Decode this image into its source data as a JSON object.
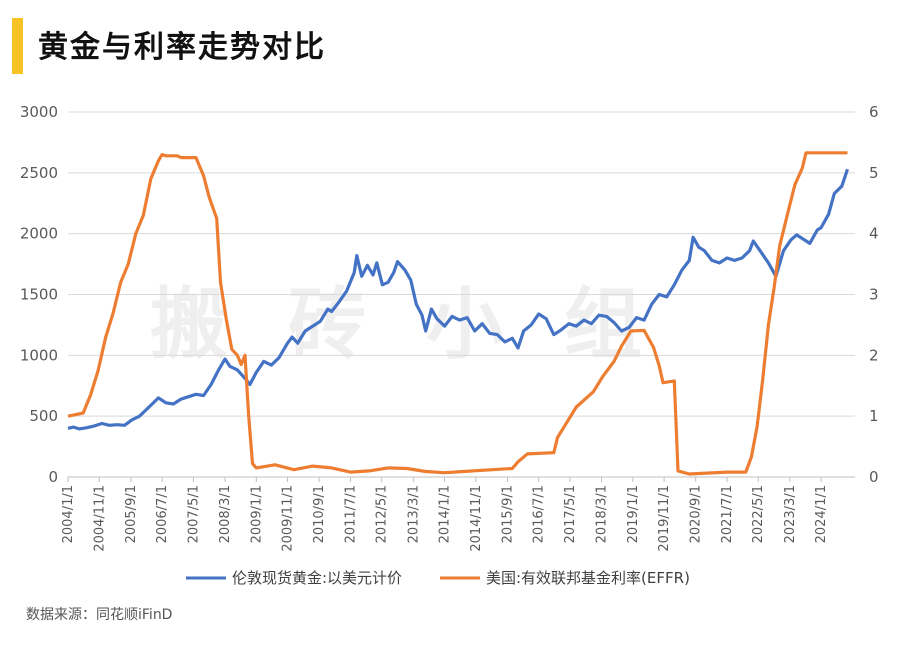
{
  "title": "黄金与利率走势对比",
  "watermark": "搬砖小组",
  "source": "数据来源：同花顺iFinD",
  "colors": {
    "gold": "#4472c4",
    "rate": "#ed7d31",
    "accent": "#f7c325",
    "grid": "#d9d9d9"
  },
  "chart_data": {
    "type": "line",
    "title": "黄金与利率走势对比",
    "y_left": {
      "min": 0,
      "max": 3000,
      "ticks": [
        "0",
        "500",
        "1000",
        "1500",
        "2000",
        "2500",
        "3000"
      ]
    },
    "y_right": {
      "min": 0,
      "max": 6,
      "ticks": [
        "0",
        "1",
        "2",
        "3",
        "4",
        "5",
        "6"
      ]
    },
    "x_range": [
      2004.0,
      2024.9
    ],
    "x_ticks": [
      {
        "t": 2004.0,
        "label": "2004/1/1"
      },
      {
        "t": 2004.83,
        "label": "2004/11/1"
      },
      {
        "t": 2005.67,
        "label": "2005/9/1"
      },
      {
        "t": 2006.5,
        "label": "2006/7/1"
      },
      {
        "t": 2007.33,
        "label": "2007/5/1"
      },
      {
        "t": 2008.17,
        "label": "2008/3/1"
      },
      {
        "t": 2009.0,
        "label": "2009/1/1"
      },
      {
        "t": 2009.83,
        "label": "2009/11/1"
      },
      {
        "t": 2010.67,
        "label": "2010/9/1"
      },
      {
        "t": 2011.5,
        "label": "2011/7/1"
      },
      {
        "t": 2012.33,
        "label": "2012/5/1"
      },
      {
        "t": 2013.17,
        "label": "2013/3/1"
      },
      {
        "t": 2014.0,
        "label": "2014/1/1"
      },
      {
        "t": 2014.83,
        "label": "2014/11/1"
      },
      {
        "t": 2015.67,
        "label": "2015/9/1"
      },
      {
        "t": 2016.5,
        "label": "2016/7/1"
      },
      {
        "t": 2017.33,
        "label": "2017/5/1"
      },
      {
        "t": 2018.17,
        "label": "2018/3/1"
      },
      {
        "t": 2019.0,
        "label": "2019/1/1"
      },
      {
        "t": 2019.83,
        "label": "2019/11/1"
      },
      {
        "t": 2020.67,
        "label": "2020/9/1"
      },
      {
        "t": 2021.5,
        "label": "2021/7/1"
      },
      {
        "t": 2022.33,
        "label": "2022/5/1"
      },
      {
        "t": 2023.17,
        "label": "2023/3/1"
      },
      {
        "t": 2024.0,
        "label": "2024/1/1"
      }
    ],
    "legend_position": "bottom",
    "grid": true,
    "series": [
      {
        "name": "伦敦现货黄金:以美元计价",
        "axis": "left",
        "points": [
          [
            2004.0,
            400
          ],
          [
            2004.15,
            410
          ],
          [
            2004.3,
            395
          ],
          [
            2004.5,
            405
          ],
          [
            2004.7,
            420
          ],
          [
            2004.9,
            440
          ],
          [
            2005.1,
            425
          ],
          [
            2005.3,
            430
          ],
          [
            2005.5,
            425
          ],
          [
            2005.7,
            470
          ],
          [
            2005.9,
            500
          ],
          [
            2006.1,
            560
          ],
          [
            2006.3,
            620
          ],
          [
            2006.4,
            650
          ],
          [
            2006.6,
            610
          ],
          [
            2006.8,
            600
          ],
          [
            2007.0,
            640
          ],
          [
            2007.2,
            660
          ],
          [
            2007.4,
            680
          ],
          [
            2007.6,
            670
          ],
          [
            2007.8,
            760
          ],
          [
            2008.0,
            880
          ],
          [
            2008.17,
            970
          ],
          [
            2008.3,
            910
          ],
          [
            2008.5,
            880
          ],
          [
            2008.7,
            810
          ],
          [
            2008.83,
            760
          ],
          [
            2009.0,
            860
          ],
          [
            2009.2,
            950
          ],
          [
            2009.4,
            920
          ],
          [
            2009.6,
            980
          ],
          [
            2009.83,
            1100
          ],
          [
            2009.95,
            1150
          ],
          [
            2010.1,
            1100
          ],
          [
            2010.3,
            1200
          ],
          [
            2010.5,
            1240
          ],
          [
            2010.7,
            1280
          ],
          [
            2010.9,
            1380
          ],
          [
            2011.0,
            1360
          ],
          [
            2011.2,
            1440
          ],
          [
            2011.4,
            1530
          ],
          [
            2011.6,
            1680
          ],
          [
            2011.67,
            1820
          ],
          [
            2011.8,
            1650
          ],
          [
            2011.95,
            1740
          ],
          [
            2012.1,
            1660
          ],
          [
            2012.2,
            1760
          ],
          [
            2012.35,
            1580
          ],
          [
            2012.5,
            1600
          ],
          [
            2012.65,
            1680
          ],
          [
            2012.75,
            1770
          ],
          [
            2012.95,
            1700
          ],
          [
            2013.1,
            1620
          ],
          [
            2013.25,
            1420
          ],
          [
            2013.4,
            1330
          ],
          [
            2013.5,
            1200
          ],
          [
            2013.65,
            1380
          ],
          [
            2013.8,
            1300
          ],
          [
            2014.0,
            1240
          ],
          [
            2014.2,
            1320
          ],
          [
            2014.4,
            1290
          ],
          [
            2014.6,
            1310
          ],
          [
            2014.8,
            1200
          ],
          [
            2015.0,
            1260
          ],
          [
            2015.2,
            1180
          ],
          [
            2015.4,
            1170
          ],
          [
            2015.6,
            1110
          ],
          [
            2015.8,
            1140
          ],
          [
            2015.95,
            1060
          ],
          [
            2016.1,
            1200
          ],
          [
            2016.3,
            1250
          ],
          [
            2016.5,
            1340
          ],
          [
            2016.7,
            1300
          ],
          [
            2016.9,
            1170
          ],
          [
            2017.1,
            1210
          ],
          [
            2017.3,
            1260
          ],
          [
            2017.5,
            1240
          ],
          [
            2017.7,
            1290
          ],
          [
            2017.9,
            1260
          ],
          [
            2018.1,
            1330
          ],
          [
            2018.3,
            1320
          ],
          [
            2018.5,
            1270
          ],
          [
            2018.7,
            1200
          ],
          [
            2018.9,
            1230
          ],
          [
            2019.1,
            1310
          ],
          [
            2019.3,
            1290
          ],
          [
            2019.5,
            1420
          ],
          [
            2019.7,
            1500
          ],
          [
            2019.9,
            1480
          ],
          [
            2020.1,
            1580
          ],
          [
            2020.3,
            1700
          ],
          [
            2020.5,
            1780
          ],
          [
            2020.6,
            1970
          ],
          [
            2020.75,
            1890
          ],
          [
            2020.9,
            1860
          ],
          [
            2021.1,
            1780
          ],
          [
            2021.3,
            1760
          ],
          [
            2021.5,
            1800
          ],
          [
            2021.7,
            1780
          ],
          [
            2021.9,
            1800
          ],
          [
            2022.1,
            1860
          ],
          [
            2022.2,
            1940
          ],
          [
            2022.4,
            1850
          ],
          [
            2022.6,
            1760
          ],
          [
            2022.8,
            1650
          ],
          [
            2023.0,
            1860
          ],
          [
            2023.2,
            1950
          ],
          [
            2023.35,
            1990
          ],
          [
            2023.5,
            1960
          ],
          [
            2023.7,
            1920
          ],
          [
            2023.9,
            2030
          ],
          [
            2024.0,
            2050
          ],
          [
            2024.2,
            2160
          ],
          [
            2024.35,
            2330
          ],
          [
            2024.55,
            2390
          ],
          [
            2024.7,
            2530
          ]
        ]
      },
      {
        "name": "美国:有效联邦基金利率(EFFR)",
        "axis": "right",
        "points": [
          [
            2004.0,
            1.0
          ],
          [
            2004.4,
            1.05
          ],
          [
            2004.6,
            1.35
          ],
          [
            2004.8,
            1.75
          ],
          [
            2005.0,
            2.3
          ],
          [
            2005.2,
            2.7
          ],
          [
            2005.4,
            3.2
          ],
          [
            2005.6,
            3.5
          ],
          [
            2005.8,
            4.0
          ],
          [
            2006.0,
            4.3
          ],
          [
            2006.2,
            4.9
          ],
          [
            2006.4,
            5.2
          ],
          [
            2006.5,
            5.3
          ],
          [
            2006.6,
            5.28
          ],
          [
            2006.9,
            5.28
          ],
          [
            2007.0,
            5.25
          ],
          [
            2007.4,
            5.25
          ],
          [
            2007.6,
            4.95
          ],
          [
            2007.75,
            4.6
          ],
          [
            2007.95,
            4.25
          ],
          [
            2008.05,
            3.2
          ],
          [
            2008.2,
            2.6
          ],
          [
            2008.35,
            2.1
          ],
          [
            2008.5,
            2.0
          ],
          [
            2008.6,
            1.85
          ],
          [
            2008.7,
            2.0
          ],
          [
            2008.8,
            1.0
          ],
          [
            2008.9,
            0.22
          ],
          [
            2009.0,
            0.15
          ],
          [
            2009.5,
            0.2
          ],
          [
            2010.0,
            0.12
          ],
          [
            2010.5,
            0.18
          ],
          [
            2011.0,
            0.15
          ],
          [
            2011.5,
            0.08
          ],
          [
            2012.0,
            0.1
          ],
          [
            2012.5,
            0.15
          ],
          [
            2013.0,
            0.14
          ],
          [
            2013.5,
            0.09
          ],
          [
            2014.0,
            0.07
          ],
          [
            2014.5,
            0.09
          ],
          [
            2015.0,
            0.11
          ],
          [
            2015.8,
            0.14
          ],
          [
            2015.95,
            0.25
          ],
          [
            2016.2,
            0.38
          ],
          [
            2016.9,
            0.4
          ],
          [
            2017.0,
            0.65
          ],
          [
            2017.25,
            0.9
          ],
          [
            2017.5,
            1.15
          ],
          [
            2017.95,
            1.4
          ],
          [
            2018.2,
            1.65
          ],
          [
            2018.5,
            1.9
          ],
          [
            2018.7,
            2.15
          ],
          [
            2018.95,
            2.4
          ],
          [
            2019.3,
            2.41
          ],
          [
            2019.55,
            2.13
          ],
          [
            2019.7,
            1.83
          ],
          [
            2019.8,
            1.55
          ],
          [
            2020.1,
            1.58
          ],
          [
            2020.2,
            0.1
          ],
          [
            2020.5,
            0.05
          ],
          [
            2021.5,
            0.08
          ],
          [
            2022.0,
            0.08
          ],
          [
            2022.15,
            0.33
          ],
          [
            2022.3,
            0.83
          ],
          [
            2022.45,
            1.6
          ],
          [
            2022.6,
            2.5
          ],
          [
            2022.75,
            3.1
          ],
          [
            2022.9,
            3.8
          ],
          [
            2023.1,
            4.3
          ],
          [
            2023.3,
            4.8
          ],
          [
            2023.5,
            5.08
          ],
          [
            2023.6,
            5.33
          ],
          [
            2024.7,
            5.33
          ]
        ]
      }
    ]
  }
}
